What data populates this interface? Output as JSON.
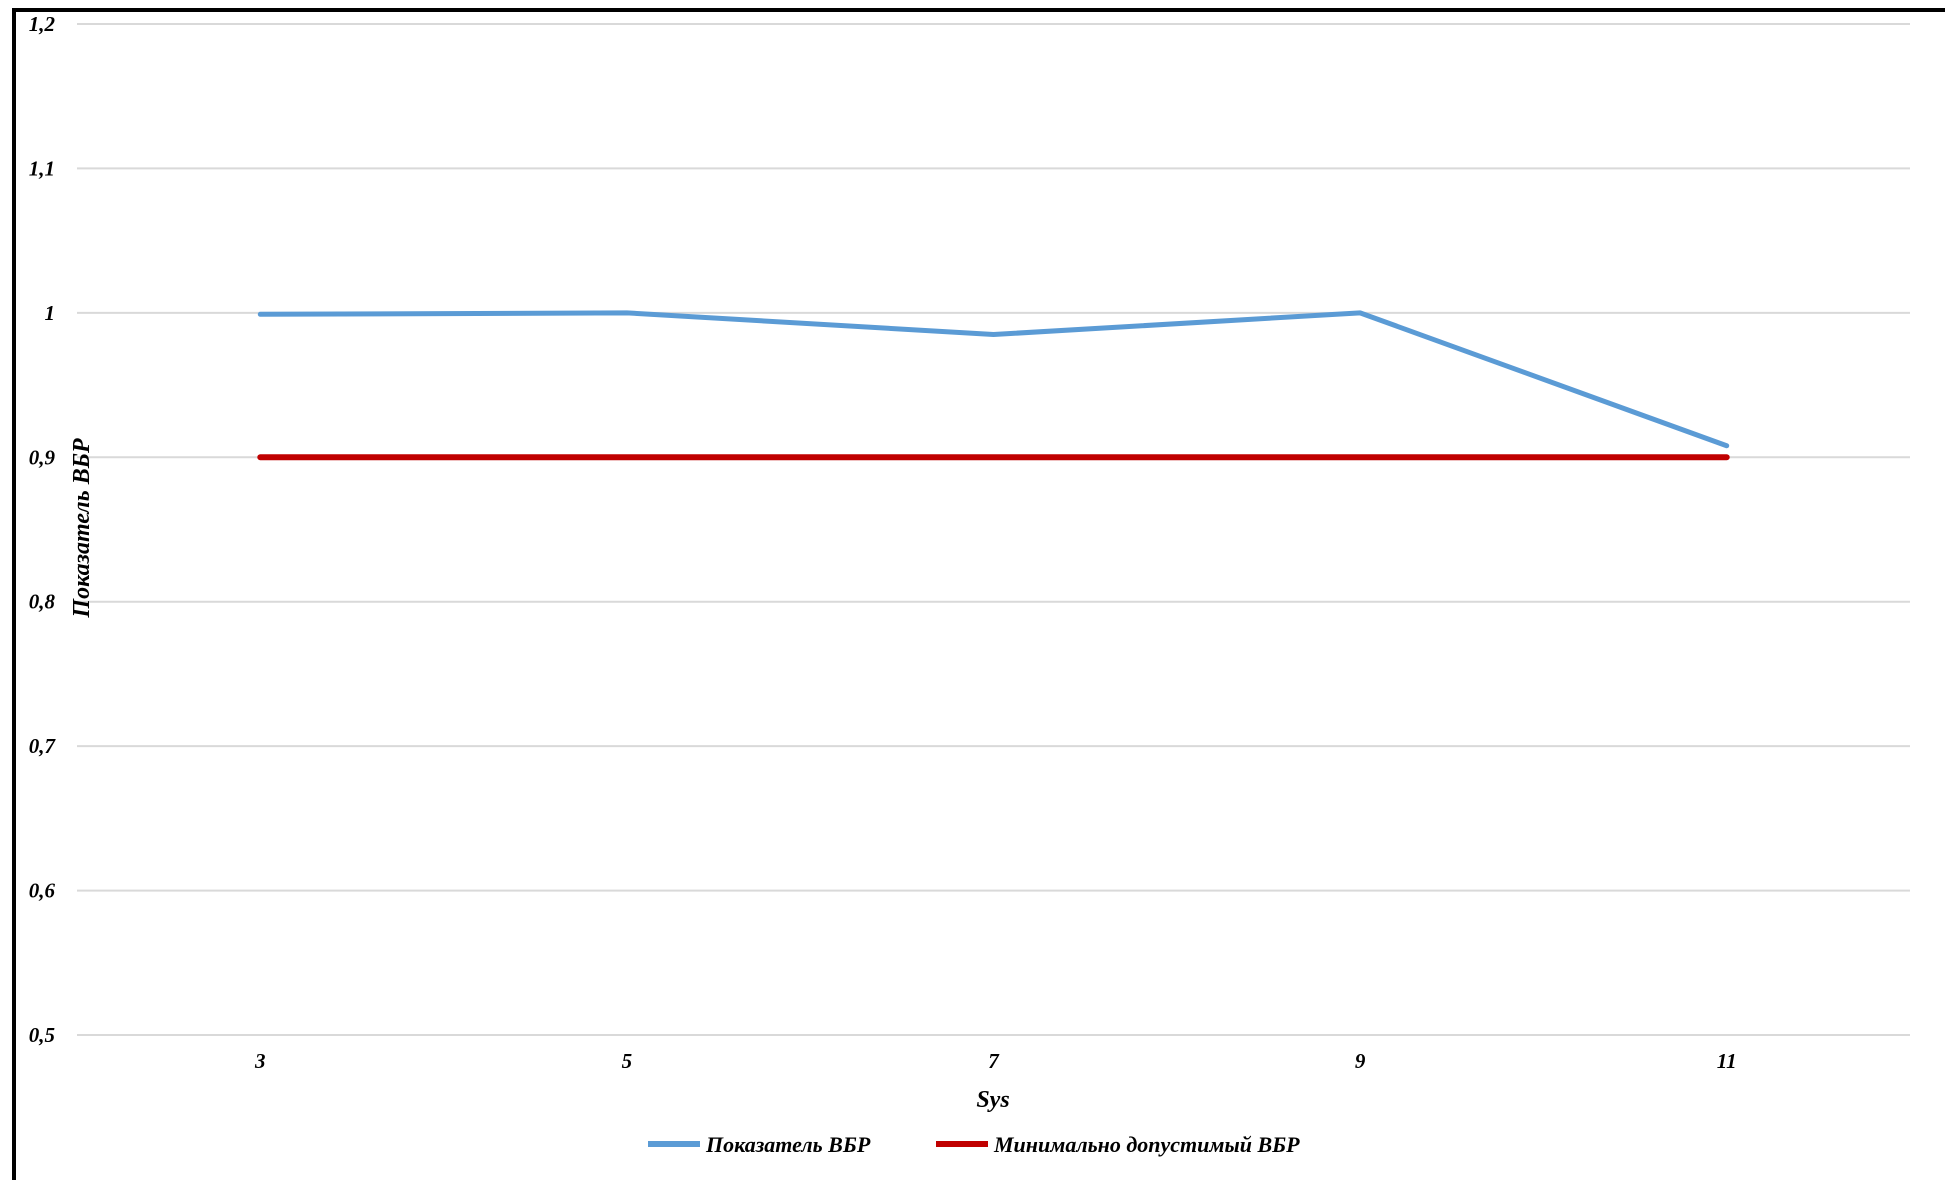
{
  "chart_data": {
    "type": "line",
    "x": [
      3,
      5,
      7,
      9,
      11
    ],
    "categories": [
      "3",
      "5",
      "7",
      "9",
      "11"
    ],
    "xlabel": "Sys",
    "ylabel": "Показатель ВБР",
    "ylim": [
      0.5,
      1.2
    ],
    "yticks": [
      "0,5",
      "0,6",
      "0,7",
      "0,8",
      "0,9",
      "1",
      "1,1",
      "1,2"
    ],
    "grid": true,
    "legend_position": "bottom",
    "series": [
      {
        "name": "Показатель ВБР",
        "color": "#5b9bd5",
        "values": [
          0.999,
          1.0,
          0.985,
          1.0,
          0.908
        ]
      },
      {
        "name": "Минимально допустимый ВБР",
        "color": "#c00000",
        "values": [
          0.9,
          0.9,
          0.9,
          0.9,
          0.9
        ]
      }
    ]
  }
}
